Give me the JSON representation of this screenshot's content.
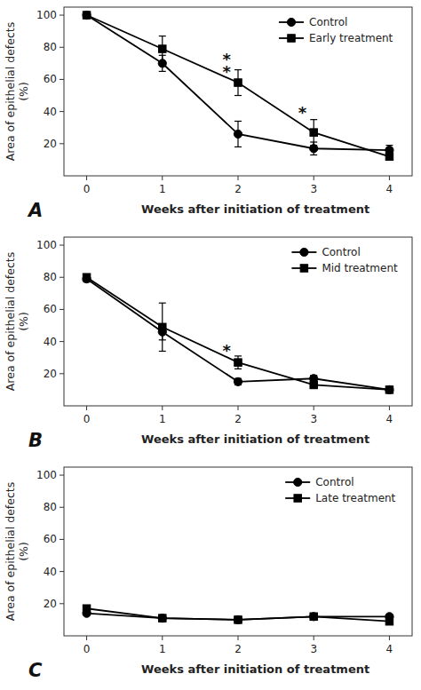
{
  "chart_data": [
    {
      "type": "line",
      "title": "A",
      "xlabel": "Weeks after initiation of treatment",
      "ylabel": "Area of epithelial defects\n(%)",
      "x": [
        0,
        1,
        2,
        3,
        4
      ],
      "xlim": [
        -0.3,
        4.3
      ],
      "xticks": [
        0,
        1,
        2,
        3,
        4
      ],
      "ylim": [
        0,
        105
      ],
      "yticks": [
        20,
        40,
        60,
        80,
        100
      ],
      "grid": false,
      "legend": "upper right",
      "series": [
        {
          "name": "Control",
          "color": "#000000",
          "marker": "circle",
          "values": [
            100,
            70,
            26,
            17,
            16
          ],
          "errors": [
            0,
            5,
            8,
            4,
            3
          ]
        },
        {
          "name": "Early treatment",
          "color": "#000000",
          "marker": "square",
          "values": [
            100,
            79,
            58,
            27,
            12
          ],
          "errors": [
            0,
            8,
            8,
            8,
            2
          ]
        }
      ],
      "annotations": [
        {
          "x": 1.85,
          "y": 76,
          "text": "*"
        },
        {
          "x": 1.85,
          "y": 68,
          "text": "*"
        },
        {
          "x": 2.85,
          "y": 43,
          "text": "*"
        }
      ]
    },
    {
      "type": "line",
      "title": "B",
      "xlabel": "Weeks after initiation of treatment",
      "ylabel": "Area of epithelial defects\n(%)",
      "x": [
        0,
        1,
        2,
        3,
        4
      ],
      "xlim": [
        -0.3,
        4.3
      ],
      "xticks": [
        0,
        1,
        2,
        3,
        4
      ],
      "ylim": [
        0,
        105
      ],
      "yticks": [
        20,
        40,
        60,
        80,
        100
      ],
      "grid": false,
      "legend": "upper right",
      "series": [
        {
          "name": "Control",
          "color": "#000000",
          "marker": "circle",
          "values": [
            79,
            46,
            15,
            17,
            10
          ],
          "errors": [
            2,
            5,
            2,
            2,
            1
          ]
        },
        {
          "name": "Mid treatment",
          "color": "#000000",
          "marker": "square",
          "values": [
            80,
            49,
            27,
            13,
            10
          ],
          "errors": [
            2,
            15,
            4,
            2,
            1
          ]
        }
      ],
      "annotations": [
        {
          "x": 1.85,
          "y": 38,
          "text": "*"
        }
      ]
    },
    {
      "type": "line",
      "title": "C",
      "xlabel": "Weeks after initiation of treatment",
      "ylabel": "Area of epithelial defects\n(%)",
      "x": [
        0,
        1,
        2,
        3,
        4
      ],
      "xlim": [
        -0.3,
        4.3
      ],
      "xticks": [
        0,
        1,
        2,
        3,
        4
      ],
      "ylim": [
        0,
        105
      ],
      "yticks": [
        20,
        40,
        60,
        80,
        100
      ],
      "grid": false,
      "legend": "upper right",
      "series": [
        {
          "name": "Control",
          "color": "#000000",
          "marker": "circle",
          "values": [
            14,
            11,
            10,
            12,
            12
          ],
          "errors": [
            1,
            1,
            2,
            1,
            1
          ]
        },
        {
          "name": "Late treatment",
          "color": "#000000",
          "marker": "square",
          "values": [
            17,
            11,
            10,
            12,
            9
          ],
          "errors": [
            2,
            1,
            1,
            2,
            2
          ]
        }
      ],
      "annotations": []
    }
  ]
}
